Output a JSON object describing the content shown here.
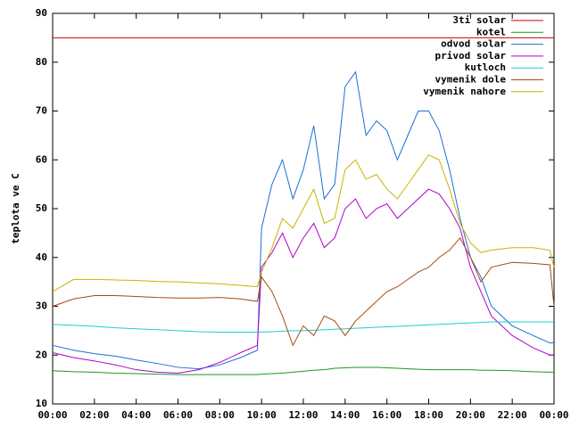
{
  "chart_data": {
    "type": "line",
    "ylabel": "teplota ve C",
    "xlim": [
      0,
      24
    ],
    "ylim": [
      10,
      90
    ],
    "yticks": [
      10,
      20,
      30,
      40,
      50,
      60,
      70,
      80,
      90
    ],
    "xticks": [
      {
        "value": 0,
        "label": "00:00"
      },
      {
        "value": 2,
        "label": "02:00"
      },
      {
        "value": 4,
        "label": "04:00"
      },
      {
        "value": 6,
        "label": "06:00"
      },
      {
        "value": 8,
        "label": "08:00"
      },
      {
        "value": 10,
        "label": "10:00"
      },
      {
        "value": 12,
        "label": "12:00"
      },
      {
        "value": 14,
        "label": "14:00"
      },
      {
        "value": 16,
        "label": "16:00"
      },
      {
        "value": 18,
        "label": "18:00"
      },
      {
        "value": 20,
        "label": "20:00"
      },
      {
        "value": 22,
        "label": "22:00"
      },
      {
        "value": 24,
        "label": "00:00"
      }
    ],
    "legend": "top-right",
    "x": [
      0,
      1,
      2,
      3,
      4,
      5,
      6,
      7,
      8,
      9,
      9.8,
      10,
      10.5,
      11,
      11.5,
      12,
      12.5,
      13,
      13.5,
      14,
      14.5,
      15,
      15.5,
      16,
      16.5,
      17,
      17.5,
      18,
      18.5,
      19,
      19.5,
      20,
      20.5,
      21,
      22,
      23,
      23.8,
      24
    ],
    "series": [
      {
        "name": "3ti solar",
        "color": "#cc0000",
        "values": [
          85,
          85,
          85,
          85,
          85,
          85,
          85,
          85,
          85,
          85,
          85,
          85,
          85,
          85,
          85,
          85,
          85,
          85,
          85,
          85,
          85,
          85,
          85,
          85,
          85,
          85,
          85,
          85,
          85,
          85,
          85,
          85,
          85,
          85,
          85,
          85,
          85,
          85
        ]
      },
      {
        "name": "kotel",
        "color": "#1a9a1a",
        "values": [
          16.8,
          16.6,
          16.5,
          16.3,
          16.2,
          16.1,
          16,
          16,
          16,
          16,
          16,
          16.1,
          16.2,
          16.3,
          16.5,
          16.7,
          16.9,
          17,
          17.3,
          17.4,
          17.5,
          17.5,
          17.5,
          17.4,
          17.3,
          17.2,
          17.1,
          17,
          17,
          17,
          17,
          17,
          16.9,
          16.9,
          16.8,
          16.6,
          16.5,
          16.5
        ]
      },
      {
        "name": "odvod solar",
        "color": "#1a6fd6",
        "values": [
          22,
          21,
          20.3,
          19.8,
          19,
          18.3,
          17.5,
          17.2,
          18,
          19.5,
          21,
          46,
          55,
          60,
          52,
          58,
          67,
          52,
          55,
          75,
          78,
          65,
          68,
          66,
          60,
          65,
          70,
          70,
          66,
          58,
          48,
          40,
          36,
          30,
          26,
          24,
          22.5,
          22.5
        ]
      },
      {
        "name": "privod solar",
        "color": "#b000c8",
        "values": [
          20.5,
          19.5,
          18.8,
          18,
          17,
          16.5,
          16.3,
          17,
          18.5,
          20.5,
          22,
          38,
          41,
          45,
          40,
          44,
          47,
          42,
          44,
          50,
          52,
          48,
          50,
          51,
          48,
          50,
          52,
          54,
          53,
          50,
          46,
          38,
          33,
          28,
          24,
          21.5,
          20,
          20
        ]
      },
      {
        "name": "kutloch",
        "color": "#1ccfd0",
        "values": [
          26.3,
          26.1,
          25.9,
          25.6,
          25.4,
          25.2,
          25,
          24.8,
          24.7,
          24.7,
          24.7,
          24.7,
          24.8,
          24.9,
          25,
          25,
          25.1,
          25.2,
          25.3,
          25.4,
          25.5,
          25.6,
          25.7,
          25.8,
          25.9,
          26,
          26.1,
          26.2,
          26.3,
          26.4,
          26.5,
          26.6,
          26.7,
          26.8,
          26.8,
          26.8,
          26.8,
          26.8
        ]
      },
      {
        "name": "vymenik dole",
        "color": "#a84a10",
        "values": [
          30,
          31.5,
          32.2,
          32.2,
          32,
          31.8,
          31.7,
          31.7,
          31.8,
          31.5,
          31,
          36,
          33,
          28,
          22,
          26,
          24,
          28,
          27,
          24,
          27,
          29,
          31,
          33,
          34,
          35.5,
          37,
          38,
          40,
          41.5,
          44,
          40,
          35,
          38,
          39,
          38.8,
          38.5,
          30
        ]
      },
      {
        "name": "vymenik nahore",
        "color": "#c8b400",
        "values": [
          33,
          35.5,
          35.5,
          35.4,
          35.3,
          35.1,
          35,
          34.8,
          34.6,
          34.3,
          34,
          37,
          42,
          48,
          46,
          50,
          54,
          47,
          48,
          58,
          60,
          56,
          57,
          54,
          52,
          55,
          58,
          61,
          60,
          54,
          47,
          43,
          41,
          41.5,
          42,
          42,
          41.5,
          38
        ]
      }
    ]
  }
}
